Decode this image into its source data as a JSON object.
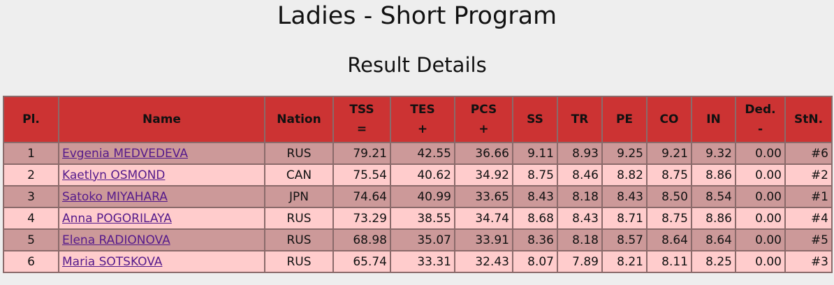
{
  "header": {
    "title": "Ladies - Short Program",
    "subtitle": "Result Details"
  },
  "table": {
    "headers": [
      {
        "label": "Pl."
      },
      {
        "label": "Name"
      },
      {
        "label": "Nation"
      },
      {
        "label": "TSS",
        "sub": "="
      },
      {
        "label": "TES",
        "sub": "+"
      },
      {
        "label": "PCS",
        "sub": "+"
      },
      {
        "label": "SS"
      },
      {
        "label": "TR"
      },
      {
        "label": "PE"
      },
      {
        "label": "CO"
      },
      {
        "label": "IN"
      },
      {
        "label": "Ded.",
        "sub": "-"
      },
      {
        "label": "StN."
      }
    ],
    "rows": [
      [
        "1",
        "Evgenia MEDVEDEVA",
        "RUS",
        "79.21",
        "42.55",
        "36.66",
        "9.11",
        "8.93",
        "9.25",
        "9.21",
        "9.32",
        "0.00",
        "#6"
      ],
      [
        "2",
        "Kaetlyn OSMOND",
        "CAN",
        "75.54",
        "40.62",
        "34.92",
        "8.75",
        "8.46",
        "8.82",
        "8.75",
        "8.86",
        "0.00",
        "#2"
      ],
      [
        "3",
        "Satoko MIYAHARA",
        "JPN",
        "74.64",
        "40.99",
        "33.65",
        "8.43",
        "8.18",
        "8.43",
        "8.50",
        "8.54",
        "0.00",
        "#1"
      ],
      [
        "4",
        "Anna POGORILAYA",
        "RUS",
        "73.29",
        "38.55",
        "34.74",
        "8.68",
        "8.43",
        "8.71",
        "8.75",
        "8.86",
        "0.00",
        "#4"
      ],
      [
        "5",
        "Elena RADIONOVA",
        "RUS",
        "68.98",
        "35.07",
        "33.91",
        "8.36",
        "8.18",
        "8.57",
        "8.64",
        "8.64",
        "0.00",
        "#5"
      ],
      [
        "6",
        "Maria SOTSKOVA",
        "RUS",
        "65.74",
        "33.31",
        "32.43",
        "8.07",
        "7.89",
        "8.21",
        "8.11",
        "8.25",
        "0.00",
        "#3"
      ]
    ]
  }
}
